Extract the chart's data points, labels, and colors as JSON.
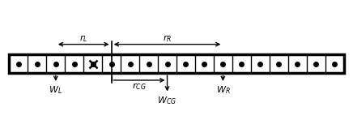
{
  "n_squares": 18,
  "sq": 1.0,
  "axis_idx": 5.5,
  "wL_idx": 3,
  "wCG_idx": 9,
  "wR_idx": 12,
  "cross_idx": 5,
  "bg_color": "#ffffff",
  "box_color": "#000000",
  "rL_label": "$r_L$",
  "rR_label": "$r_R$",
  "rCG_label": "$r_{CG}$",
  "wL_label": "$W_L$",
  "wCG_label": "$W_{CG}$",
  "wR_label": "$W_R$",
  "font_size": 8,
  "rod_lw": 2.5,
  "div_lw": 1.0,
  "arrow_lw": 1.0,
  "axis_lw": 1.2,
  "dot_size": 4
}
